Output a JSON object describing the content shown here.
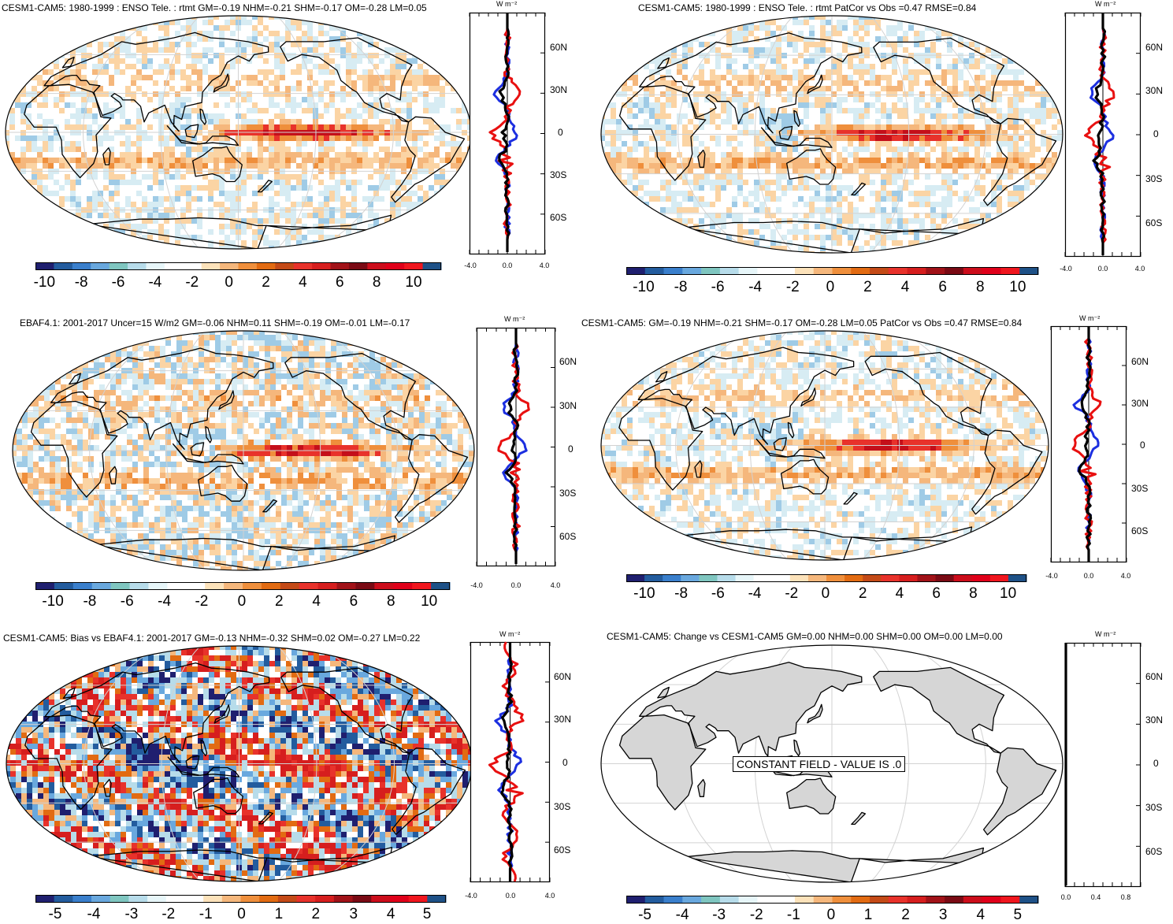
{
  "colorbar_colors": [
    "#1f1f6f",
    "#235c9e",
    "#3a7fcc",
    "#69a8de",
    "#7fc6c0",
    "#b7dcea",
    "#e7f6f9",
    "#ffffff",
    "#ffffff",
    "#fce2ba",
    "#f5b77c",
    "#ef8f3c",
    "#e26b12",
    "#c44a17",
    "#e8322b",
    "#d61e1e",
    "#a11218",
    "#7a0a14",
    "#cc0d1b",
    "#e0001a",
    "#f0161e",
    "#1e5187"
  ],
  "panels": [
    {
      "title": "CESM1-CAM5: 1980-1999 : ENSO Tele. : rtmt GM=-0.19 NHM=-0.21 SHM=-0.17 OM=-0.28 LM=0.05",
      "unit": "W m⁻²",
      "lat_labels": [
        "60N",
        "30N",
        "0",
        "30S",
        "60S"
      ],
      "x_ticks": [
        "-4.0",
        "0.0",
        "4.0"
      ],
      "colorbar_labels": [
        "-10",
        "-8",
        "-6",
        "-4",
        "-2",
        "0",
        "2",
        "4",
        "6",
        "8",
        "10"
      ],
      "field": "anomaly"
    },
    {
      "title": "CESM1-CAM5: 1980-1999 : ENSO Tele. : rtmt PatCor vs Obs =0.47 RMSE=0.84",
      "unit": "W m⁻²",
      "lat_labels": [
        "60N",
        "30N",
        "0",
        "30S",
        "60S"
      ],
      "x_ticks": [
        "-4.0",
        "0.0",
        "4.0"
      ],
      "colorbar_labels": [
        "-10",
        "-8",
        "-6",
        "-4",
        "-2",
        "0",
        "2",
        "4",
        "6",
        "8",
        "10"
      ],
      "field": "anomaly"
    },
    {
      "title": "EBAF4.1: 2001-2017 Uncer=15 W/m2 GM=-0.06 NHM=0.11 SHM=-0.19 OM=-0.01 LM=-0.17",
      "unit": "W m⁻²",
      "lat_labels": [
        "60N",
        "30N",
        "0",
        "30S",
        "60S"
      ],
      "x_ticks": [
        "-4.0",
        "0.0",
        "4.0"
      ],
      "colorbar_labels": [
        "-10",
        "-8",
        "-6",
        "-4",
        "-2",
        "0",
        "2",
        "4",
        "6",
        "8",
        "10"
      ],
      "field": "obs"
    },
    {
      "title": "CESM1-CAM5: GM=-0.19 NHM=-0.21 SHM=-0.17 OM=-0.28 LM=0.05 PatCor vs Obs =0.47 RMSE=0.84",
      "unit": "W m⁻²",
      "lat_labels": [
        "60N",
        "30N",
        "0",
        "30S",
        "60S"
      ],
      "x_ticks": [
        "-4.0",
        "0.0",
        "4.0"
      ],
      "colorbar_labels": [
        "-10",
        "-8",
        "-6",
        "-4",
        "-2",
        "0",
        "2",
        "4",
        "6",
        "8",
        "10"
      ],
      "field": "anomaly"
    },
    {
      "title": "CESM1-CAM5: Bias vs EBAF4.1: 2001-2017 GM=-0.13 NHM=-0.32 SHM=0.02 OM=-0.27 LM=0.22",
      "unit": "W m⁻²",
      "lat_labels": [
        "60N",
        "30N",
        "0",
        "30S",
        "60S"
      ],
      "x_ticks": [
        "-4.0",
        "0.0",
        "4.0"
      ],
      "colorbar_labels": [
        "-5",
        "-4",
        "-3",
        "-2",
        "-1",
        "0",
        "1",
        "2",
        "3",
        "4",
        "5"
      ],
      "field": "bias"
    },
    {
      "title": "CESM1-CAM5: Change vs CESM1-CAM5 GM=0.00 NHM=0.00 SHM=0.00 OM=0.00 LM=0.00",
      "unit": "W m⁻²",
      "lat_labels": [
        "60N",
        "30N",
        "0",
        "30S",
        "60S"
      ],
      "x_ticks": [
        "0.0",
        "0.4",
        "0.8"
      ],
      "colorbar_labels": [
        "-5",
        "-4",
        "-3",
        "-2",
        "-1",
        "0",
        "1",
        "2",
        "3",
        "4",
        "5"
      ],
      "field": "constant",
      "constant_note": "CONSTANT FIELD - VALUE IS .0"
    }
  ]
}
